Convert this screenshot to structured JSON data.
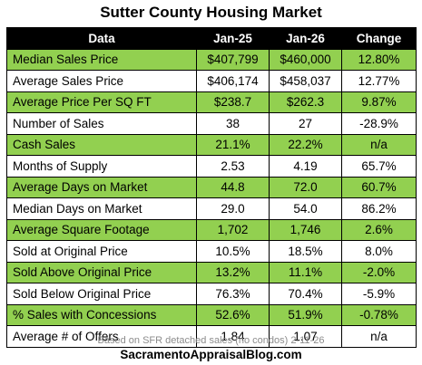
{
  "title": "Sutter County Housing Market",
  "headers": [
    "Data",
    "Jan-25",
    "Jan-26",
    "Change"
  ],
  "rows": [
    {
      "label": "Median Sales Price",
      "jan25": "$407,799",
      "jan26": "$460,000",
      "change": "12.80%",
      "shade": "green"
    },
    {
      "label": "Average Sales Price",
      "jan25": "$406,174",
      "jan26": "$458,037",
      "change": "12.77%",
      "shade": "white"
    },
    {
      "label": "Average Price Per SQ FT",
      "jan25": "$238.7",
      "jan26": "$262.3",
      "change": "9.87%",
      "shade": "green"
    },
    {
      "label": "Number of Sales",
      "jan25": "38",
      "jan26": "27",
      "change": "-28.9%",
      "shade": "white"
    },
    {
      "label": "Cash Sales",
      "jan25": "21.1%",
      "jan26": "22.2%",
      "change": "n/a",
      "shade": "green"
    },
    {
      "label": "Months of Supply",
      "jan25": "2.53",
      "jan26": "4.19",
      "change": "65.7%",
      "shade": "white"
    },
    {
      "label": "Average Days on Market",
      "jan25": "44.8",
      "jan26": "72.0",
      "change": "60.7%",
      "shade": "green"
    },
    {
      "label": "Median Days on Market",
      "jan25": "29.0",
      "jan26": "54.0",
      "change": "86.2%",
      "shade": "white"
    },
    {
      "label": "Average Square Footage",
      "jan25": "1,702",
      "jan26": "1,746",
      "change": "2.6%",
      "shade": "green"
    },
    {
      "label": "Sold at Original Price",
      "jan25": "10.5%",
      "jan26": "18.5%",
      "change": "8.0%",
      "shade": "white"
    },
    {
      "label": "Sold Above Original Price",
      "jan25": "13.2%",
      "jan26": "11.1%",
      "change": "-2.0%",
      "shade": "green"
    },
    {
      "label": "Sold Below Original Price",
      "jan25": "76.3%",
      "jan26": "70.4%",
      "change": "-5.9%",
      "shade": "white"
    },
    {
      "label": "% Sales with Concessions",
      "jan25": "52.6%",
      "jan26": "51.9%",
      "change": "-0.78%",
      "shade": "green"
    },
    {
      "label": "Average # of Offers",
      "jan25": "1.84",
      "jan26": "1.07",
      "change": "n/a",
      "shade": "white"
    }
  ],
  "footnote": "Based on SFR detached sales (no condos) 2-11-26",
  "brand": "SacramentoAppraisalBlog.com",
  "colors": {
    "row_shade": "#92d050",
    "header_bg": "#000000"
  }
}
